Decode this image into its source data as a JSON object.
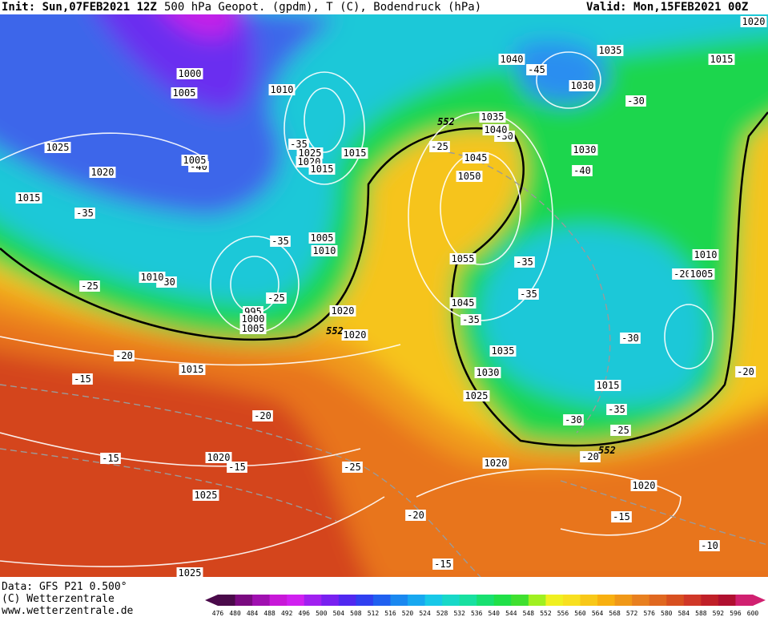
{
  "header": {
    "init": "Init: Sun,07FEB2021 12Z",
    "title": "500 hPa Geopot. (gpdm), T (C), Bodendruck (hPa)",
    "valid": "Valid: Mon,15FEB2021 00Z"
  },
  "footer": {
    "data_source": "Data: GFS P21 0.500°",
    "copyright": "(C) Wetterzentrale",
    "website": "www.wetterzentrale.de"
  },
  "map": {
    "isobar_labels": [
      1000,
      1005,
      1010,
      1025,
      1020,
      1015,
      1005,
      1025,
      1020,
      1015,
      1015,
      1005,
      1010,
      1010,
      995,
      1000,
      1005,
      1020,
      1020,
      1015,
      1020,
      1025,
      1025,
      1040,
      1035,
      1015,
      1030,
      1035,
      1040,
      1045,
      1050,
      1030,
      1055,
      1045,
      1035,
      1030,
      1025,
      1015,
      1010,
      1005,
      1020,
      1020,
      1020
    ],
    "isotherm_labels": [
      -35,
      -40,
      -35,
      -35,
      -25,
      -30,
      -25,
      -20,
      -15,
      -20,
      -15,
      -15,
      -25,
      -20,
      -15,
      -25,
      -30,
      -45,
      -30,
      -40,
      -35,
      -35,
      -35,
      -30,
      -20,
      -35,
      -30,
      -25,
      -20,
      -15,
      -10,
      -20
    ],
    "geopotential_labels": [
      552,
      552,
      552
    ]
  },
  "colorbar": {
    "levels": [
      476,
      480,
      484,
      488,
      492,
      496,
      500,
      504,
      508,
      512,
      516,
      520,
      524,
      528,
      532,
      536,
      540,
      544,
      548,
      552,
      556,
      560,
      564,
      568,
      572,
      576,
      580,
      584,
      588,
      592,
      596,
      600
    ],
    "colors": [
      "#4a0a4a",
      "#7a0a80",
      "#a010b0",
      "#c818d8",
      "#d020f0",
      "#a020f0",
      "#7820f0",
      "#5028f0",
      "#3040f0",
      "#2060f0",
      "#1a88f0",
      "#18a8f0",
      "#18c8e8",
      "#18d8c8",
      "#18e0a0",
      "#18e070",
      "#20e048",
      "#40e030",
      "#a0f020",
      "#f0f020",
      "#f8e020",
      "#f8c818",
      "#f8b010",
      "#f09818",
      "#e88020",
      "#e06820",
      "#d85020",
      "#d03828",
      "#c02028",
      "#b01030",
      "#d02070"
    ]
  }
}
